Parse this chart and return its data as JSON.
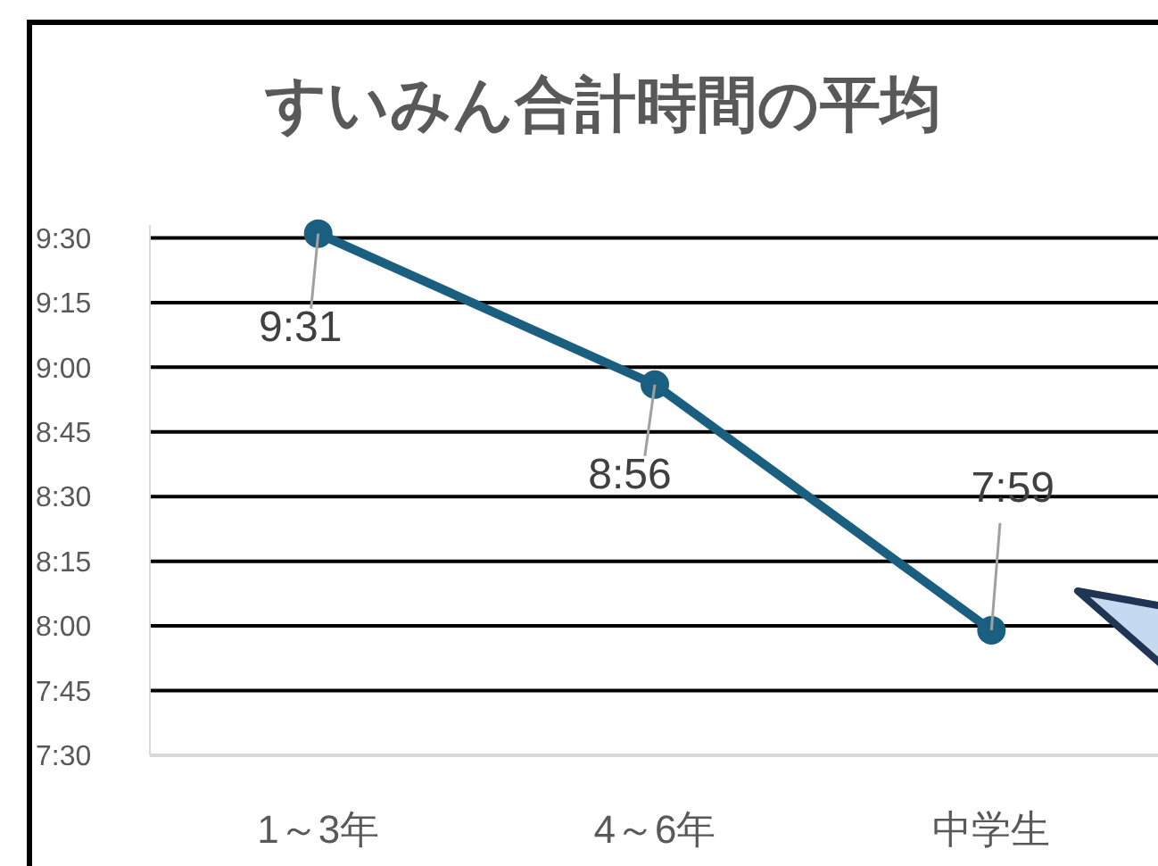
{
  "chart_data": {
    "type": "line",
    "title": "すいみん合計時間の平均",
    "categories": [
      "1～3年",
      "4～6年",
      "中学生"
    ],
    "series": [
      {
        "color": "#1a5f80",
        "values": [
          9.5167,
          8.9333,
          7.9833
        ],
        "value_labels": [
          "9:31",
          "8:56",
          "7:59"
        ]
      }
    ],
    "ylim": [
      7.5,
      9.55
    ],
    "yticks": [
      {
        "value": 7.5,
        "label": "7:30"
      },
      {
        "value": 7.75,
        "label": "7:45"
      },
      {
        "value": 8,
        "label": "8:00"
      },
      {
        "value": 8.25,
        "label": "8:15"
      },
      {
        "value": 8.5,
        "label": "8:30"
      },
      {
        "value": 8.75,
        "label": "8:45"
      },
      {
        "value": 9,
        "label": "9:00"
      },
      {
        "value": 9.25,
        "label": "9:15"
      },
      {
        "value": 9.5,
        "label": "9:30"
      }
    ],
    "grid": "y",
    "marker": "circle",
    "line_style": "solid"
  }
}
